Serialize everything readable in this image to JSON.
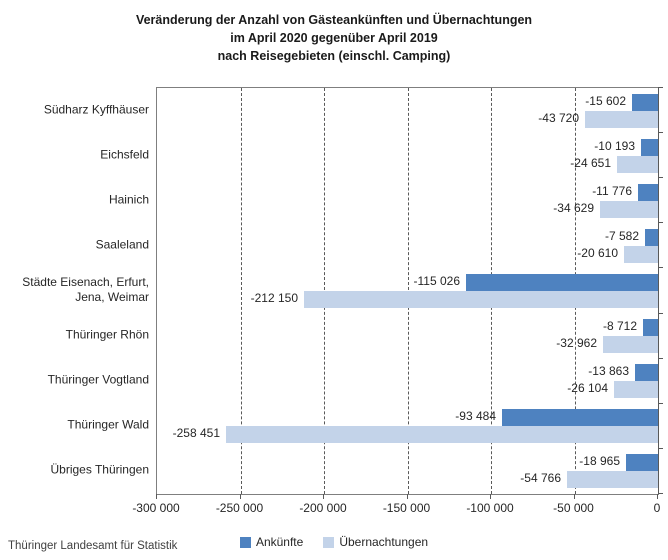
{
  "title": {
    "line1": "Veränderung der Anzahl von Gästeankünften und Übernachtungen",
    "line2": "im April 2020 gegenüber April 2019",
    "line3": "nach Reisegebieten (einschl. Camping)"
  },
  "footer": "Thüringer Landesamt für Statistik",
  "colors": {
    "ankuenfte": "#4e82c0",
    "uebernachtungen": "#c3d3e9",
    "axis": "#595959",
    "frame": "#7f7f7f"
  },
  "chart_data": {
    "type": "bar",
    "orientation": "horizontal",
    "title": "Veränderung der Anzahl von Gästeankünften und Übernachtungen im April 2020 gegenüber April 2019 nach Reisegebieten (einschl. Camping)",
    "categories": [
      "Südharz Kyffhäuser",
      "Eichsfeld",
      "Hainich",
      "Saaleland",
      "Städte Eisenach, Erfurt,\nJena, Weimar",
      "Thüringer Rhön",
      "Thüringer Vogtland",
      "Thüringer Wald",
      "Übriges Thüringen"
    ],
    "series": [
      {
        "name": "Ankünfte",
        "color": "#4e82c0",
        "values": [
          -15602,
          -10193,
          -11776,
          -7582,
          -115026,
          -8712,
          -13863,
          -93484,
          -18965
        ],
        "labels": [
          "-15 602",
          "-10 193",
          "-11 776",
          "-7 582",
          "-115 026",
          "-8 712",
          "-13 863",
          "-93 484",
          "-18 965"
        ]
      },
      {
        "name": "Übernachtungen",
        "color": "#c3d3e9",
        "values": [
          -43720,
          -24651,
          -34629,
          -20610,
          -212150,
          -32962,
          -26104,
          -258451,
          -54766
        ],
        "labels": [
          "-43 720",
          "-24 651",
          "-34 629",
          "-20 610",
          "-212 150",
          "-32 962",
          "-26 104",
          "-258 451",
          "-54 766"
        ]
      }
    ],
    "xlim": [
      -300000,
      0
    ],
    "xticks": [
      -300000,
      -250000,
      -200000,
      -150000,
      -100000,
      -50000,
      0
    ],
    "xtick_labels": [
      "-300 000",
      "-250 000",
      "-200 000",
      "-150 000",
      "-100 000",
      "-50 000",
      "0"
    ],
    "grid": true,
    "legend_position": "bottom"
  }
}
